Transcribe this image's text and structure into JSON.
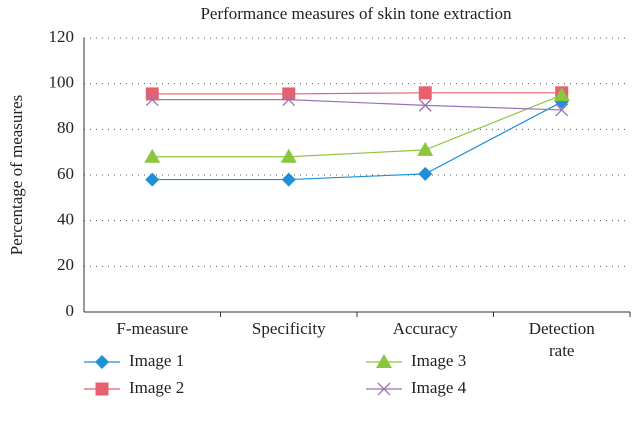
{
  "chart_data": {
    "type": "line",
    "title": "Performance measures of skin tone extraction",
    "y_label": "Percentage of measures",
    "categories": [
      "F-measure",
      "Specificity",
      "Accuracy",
      "Detection rate"
    ],
    "series": [
      {
        "name": "Image 1",
        "color": "#1e90d6",
        "marker": "diamond",
        "values": [
          58,
          58,
          60.5,
          92
        ]
      },
      {
        "name": "Image 2",
        "color": "#e8606e",
        "marker": "square",
        "values": [
          95.5,
          95.5,
          96,
          96
        ]
      },
      {
        "name": "Image 3",
        "color": "#8cc63f",
        "marker": "triangle",
        "values": [
          68,
          68,
          71,
          95
        ]
      },
      {
        "name": "Image 4",
        "color": "#9b72b5",
        "marker": "x",
        "values": [
          93,
          93,
          90.5,
          88.5
        ]
      }
    ],
    "ylim": [
      0,
      120
    ],
    "yticks": [
      0,
      20,
      40,
      60,
      80,
      100,
      120
    ],
    "grid": true,
    "legend": "bottom"
  }
}
